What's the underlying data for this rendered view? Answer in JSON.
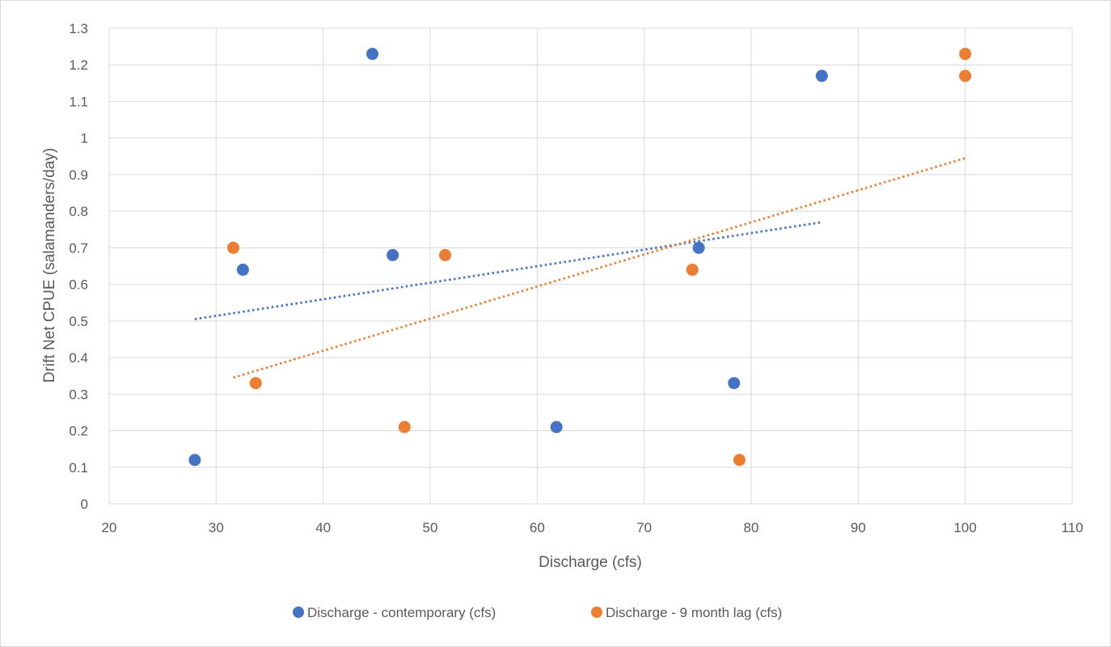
{
  "chart_data": {
    "type": "scatter",
    "xlabel": "Discharge (cfs)",
    "ylabel": "Drift Net CPUE (salamanders/day)",
    "xlim": [
      20,
      110
    ],
    "ylim": [
      0,
      1.3
    ],
    "x_ticks": [
      20,
      30,
      40,
      50,
      60,
      70,
      80,
      90,
      100,
      110
    ],
    "y_ticks": [
      0,
      0.1,
      0.2,
      0.3,
      0.4,
      0.5,
      0.6,
      0.7,
      0.8,
      0.9,
      1,
      1.1,
      1.2,
      1.3
    ],
    "x_tick_labels": [
      "20",
      "30",
      "40",
      "50",
      "60",
      "70",
      "80",
      "90",
      "100",
      "110"
    ],
    "y_tick_labels": [
      "0",
      "0.1",
      "0.2",
      "0.3",
      "0.4",
      "0.5",
      "0.6",
      "0.7",
      "0.8",
      "0.9",
      "1",
      "1.1",
      "1.2",
      "1.3"
    ],
    "grid": true,
    "legend_position": "bottom",
    "series": [
      {
        "name": "Discharge - contemporary (cfs)",
        "color": "#4472C4",
        "points": [
          [
            28,
            0.12
          ],
          [
            32.5,
            0.64
          ],
          [
            44.6,
            1.23
          ],
          [
            46.5,
            0.68
          ],
          [
            61.8,
            0.21
          ],
          [
            75.1,
            0.7
          ],
          [
            78.4,
            0.33
          ],
          [
            86.6,
            1.17
          ]
        ],
        "trendline": {
          "type": "linear",
          "dotted": true,
          "x": [
            28,
            86.6
          ],
          "y": [
            0.505,
            0.77
          ]
        }
      },
      {
        "name": "Discharge - 9 month lag (cfs)",
        "color": "#ED7D31",
        "points": [
          [
            31.6,
            0.7
          ],
          [
            33.7,
            0.33
          ],
          [
            47.6,
            0.21
          ],
          [
            51.4,
            0.68
          ],
          [
            74.5,
            0.64
          ],
          [
            78.9,
            0.12
          ],
          [
            100,
            1.23
          ],
          [
            100,
            1.17
          ]
        ],
        "trendline": {
          "type": "linear",
          "dotted": true,
          "x": [
            31.6,
            100
          ],
          "y": [
            0.345,
            0.945
          ]
        }
      }
    ]
  }
}
